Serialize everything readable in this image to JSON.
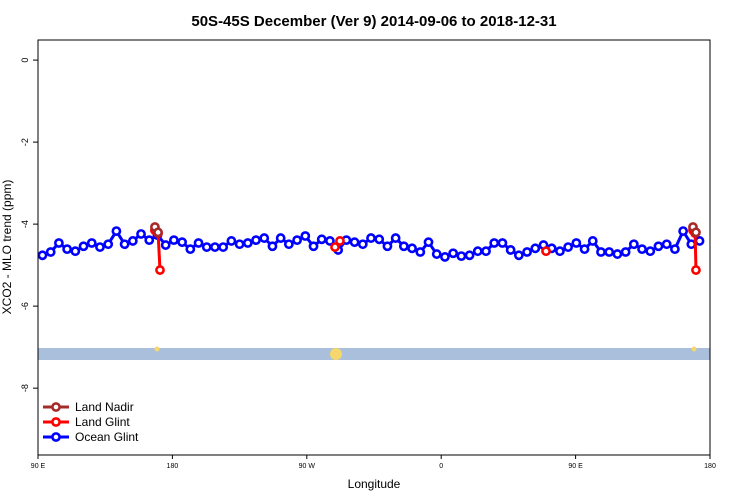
{
  "chart_data": {
    "type": "line",
    "title": "50S-45S December (Ver 9)   2014-09-06 to 2018-12-31",
    "x_label": "Longitude",
    "y_label": "XCO2 - MLO trend (ppm)",
    "xlim": [
      90,
      540
    ],
    "ylim": [
      -9.63,
      0.49
    ],
    "xticks": [
      {
        "value": 90,
        "label": "90 E"
      },
      180,
      {
        "value": 270,
        "label": "90 W"
      },
      {
        "value": 360,
        "label": "0"
      },
      {
        "value": 450,
        "label": "90 E"
      },
      {
        "value": 540,
        "label": "180"
      }
    ],
    "yticks": [
      0,
      -2,
      -4,
      -6,
      -8
    ],
    "legend": "bottom-left",
    "series": [
      {
        "name": "Land Nadir",
        "color": "#a52a2a",
        "x": [
          168.3,
          170.4,
          null,
          528.6,
          530.6
        ],
        "values": [
          -4.07,
          -4.2,
          null,
          -4.07,
          -4.2
        ]
      },
      {
        "name": "Land Glint",
        "color": "#ff0000",
        "x": [
          168.3,
          170.4,
          171.7,
          null,
          288.9,
          292.2,
          null,
          430.2,
          null,
          528.6,
          530.0,
          530.6
        ],
        "values": [
          -4.15,
          -4.22,
          -5.12,
          null,
          -4.56,
          -4.41,
          null,
          -4.66,
          null,
          -4.15,
          -4.22,
          -5.12
        ]
      },
      {
        "name": "Ocean Glint",
        "color": "#0000ff",
        "x": [
          93,
          98.5,
          104,
          109.5,
          115,
          120.5,
          126,
          131.5,
          137,
          142.5,
          148,
          153.5,
          159,
          164.5,
          170,
          175.5,
          181,
          186.5,
          192,
          197.5,
          203,
          208.5,
          214,
          219.5,
          225,
          230.5,
          236,
          241.5,
          247,
          252.5,
          258,
          263.5,
          269,
          274.5,
          280,
          285.5,
          291,
          296.5,
          302,
          307.5,
          313,
          318.5,
          324,
          329.5,
          335,
          340.5,
          346,
          351.5,
          357,
          362.5,
          368,
          373.5,
          379,
          384.5,
          390,
          395.5,
          401,
          406.5,
          412,
          417.5,
          423,
          428.5,
          434,
          439.5,
          445,
          450.5,
          456,
          461.5,
          467,
          472.5,
          478,
          483.5,
          489,
          494.5,
          500,
          505.5,
          511,
          516.5,
          522,
          527.5,
          533
        ],
        "values": [
          -4.76,
          -4.68,
          -4.46,
          -4.61,
          -4.66,
          -4.54,
          -4.46,
          -4.56,
          -4.49,
          -4.17,
          -4.49,
          -4.41,
          -4.24,
          -4.39,
          -4.27,
          -4.51,
          -4.39,
          -4.44,
          -4.61,
          -4.46,
          -4.56,
          -4.56,
          -4.56,
          -4.41,
          -4.49,
          -4.46,
          -4.39,
          -4.34,
          -4.54,
          -4.34,
          -4.49,
          -4.39,
          -4.29,
          -4.54,
          -4.37,
          -4.41,
          -4.63,
          -4.39,
          -4.44,
          -4.49,
          -4.34,
          -4.37,
          -4.54,
          -4.34,
          -4.54,
          -4.59,
          -4.68,
          -4.44,
          -4.73,
          -4.8,
          -4.71,
          -4.78,
          -4.76,
          -4.66,
          -4.66,
          -4.46,
          -4.46,
          -4.63,
          -4.76,
          -4.68,
          -4.59,
          -4.51,
          -4.59,
          -4.66,
          -4.56,
          -4.46,
          -4.61,
          -4.41,
          -4.68,
          -4.68,
          -4.73,
          -4.68,
          -4.49,
          -4.61,
          -4.66,
          -4.54,
          -4.49,
          -4.61,
          -4.17,
          -4.49,
          -4.41
        ]
      }
    ]
  }
}
